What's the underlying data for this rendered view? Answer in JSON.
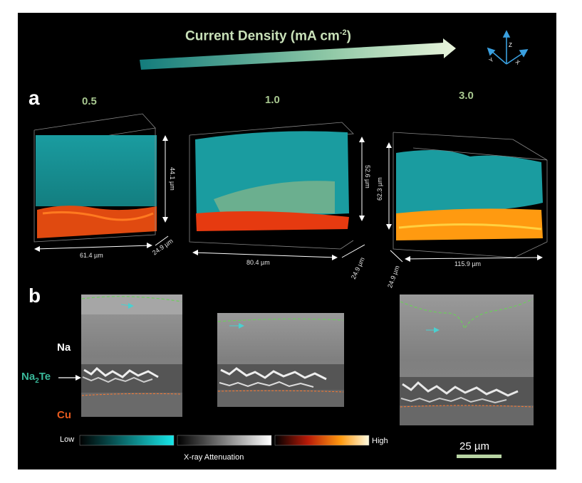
{
  "title": {
    "main": "Current Density (mA cm",
    "sup": "-2",
    "close": ")"
  },
  "panels": {
    "a": "a",
    "b": "b"
  },
  "densities": [
    "0.5",
    "1.0",
    "3.0"
  ],
  "dims": {
    "v1": {
      "height": "44.1 µm",
      "width": "61.4 µm",
      "depth": "24.9 µm"
    },
    "v2": {
      "height": "52.6 µm",
      "width": "80.4 µm",
      "depth": "24.9 µm"
    },
    "v3": {
      "height": "62.3 µm",
      "width": "115.9 µm",
      "depth": "24.9 µm"
    }
  },
  "layers": {
    "na": "Na",
    "na2te_pre": "Na",
    "na2te_sub": "2",
    "na2te_post": "Te",
    "cu": "Cu"
  },
  "colorbar": {
    "low": "Low",
    "high": "High",
    "label": "X-ray Attenuation"
  },
  "scale_bar": "25 µm",
  "axes": {
    "z": "Z",
    "y": "Y",
    "x": "X"
  },
  "colors": {
    "sodium": "#1ba0a4",
    "interphase": "#ff4a10",
    "copper": "#ff9a10",
    "teal_text": "#3ab89a"
  }
}
